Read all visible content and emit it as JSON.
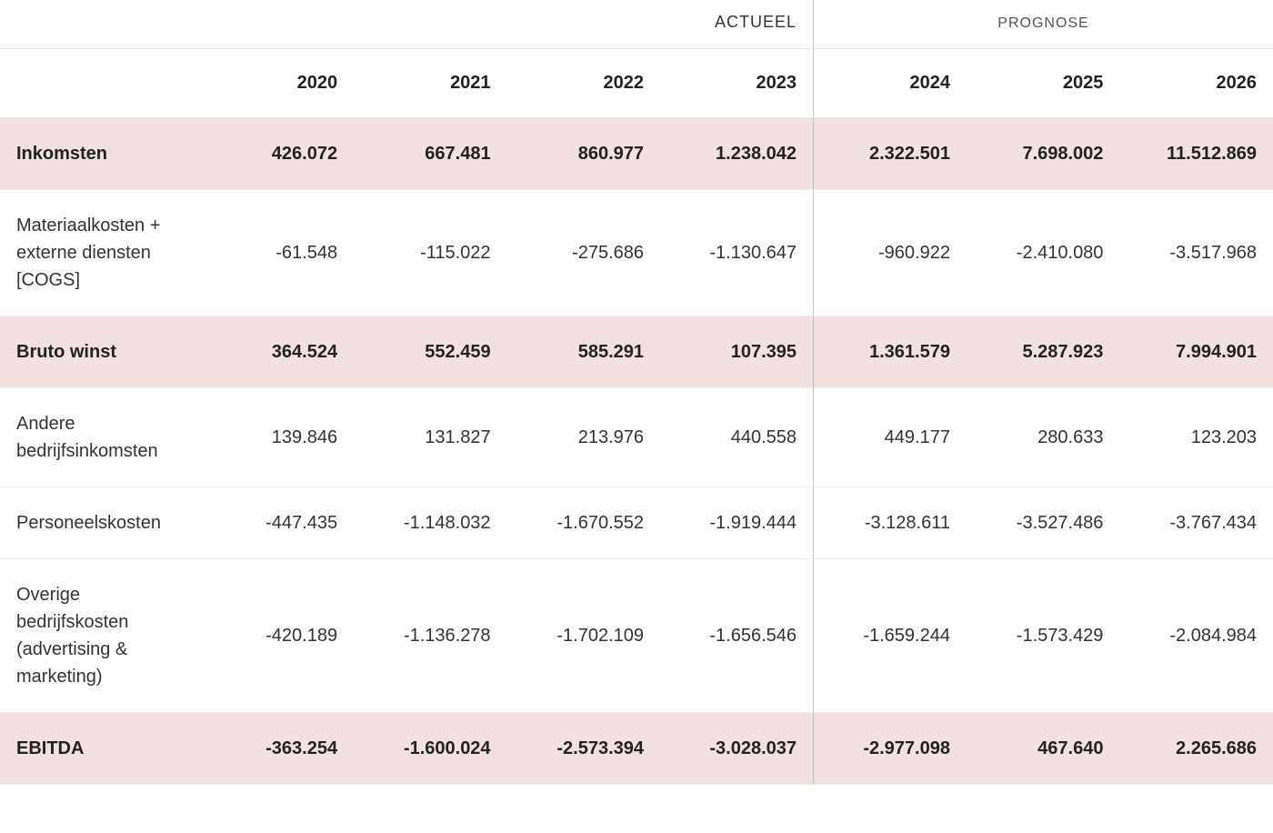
{
  "table": {
    "type": "table",
    "background_color": "#ffffff",
    "highlight_color": "#f3e1e2",
    "grid_color": "#ededed",
    "separator_color": "#bdbdbd",
    "header_border_color": "#e5e5e5",
    "text_color": "#333333",
    "bold_text_color": "#222222",
    "label_fontsize": 20,
    "cell_fontsize": 20,
    "year_fontsize": 20,
    "section_fontsize": 18,
    "sections": {
      "actual": "ACTUEEL",
      "forecast": "PROGNOSE"
    },
    "columns": [
      "2020",
      "2021",
      "2022",
      "2023",
      "2024",
      "2025",
      "2026"
    ],
    "actual_col_count": 4,
    "forecast_col_count": 3,
    "rows": [
      {
        "label": "Inkomsten",
        "bold": true,
        "highlight": true,
        "values": [
          "426.072",
          "667.481",
          "860.977",
          "1.238.042",
          "2.322.501",
          "7.698.002",
          "11.512.869"
        ]
      },
      {
        "label": "Materiaalkosten + externe diensten [COGS]",
        "bold": false,
        "highlight": false,
        "values": [
          "-61.548",
          "-115.022",
          "-275.686",
          "-1.130.647",
          "-960.922",
          "-2.410.080",
          "-3.517.968"
        ]
      },
      {
        "label": "Bruto winst",
        "bold": true,
        "highlight": true,
        "values": [
          "364.524",
          "552.459",
          "585.291",
          "107.395",
          "1.361.579",
          "5.287.923",
          "7.994.901"
        ]
      },
      {
        "label": "Andere bedrijfsinkomsten",
        "bold": false,
        "highlight": false,
        "values": [
          "139.846",
          "131.827",
          "213.976",
          "440.558",
          "449.177",
          "280.633",
          "123.203"
        ]
      },
      {
        "label": "Personeelskosten",
        "bold": false,
        "highlight": false,
        "values": [
          "-447.435",
          "-1.148.032",
          "-1.670.552",
          "-1.919.444",
          "-3.128.611",
          "-3.527.486",
          "-3.767.434"
        ]
      },
      {
        "label": "Overige bedrijfskosten (advertising & marketing)",
        "bold": false,
        "highlight": false,
        "values": [
          "-420.189",
          "-1.136.278",
          "-1.702.109",
          "-1.656.546",
          "-1.659.244",
          "-1.573.429",
          "-2.084.984"
        ]
      },
      {
        "label": "EBITDA",
        "bold": true,
        "highlight": true,
        "values": [
          "-363.254",
          "-1.600.024",
          "-2.573.394",
          "-3.028.037",
          "-2.977.098",
          "467.640",
          "2.265.686"
        ]
      }
    ]
  }
}
